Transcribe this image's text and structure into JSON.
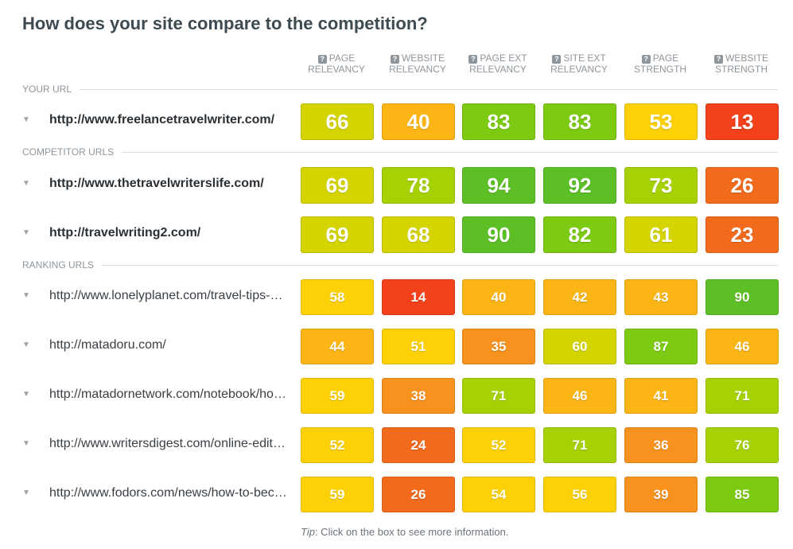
{
  "title": "How does your site compare to the competition?",
  "columns": [
    {
      "line1": "PAGE",
      "line2": "RELEVANCY"
    },
    {
      "line1": "WEBSITE",
      "line2": "RELEVANCY"
    },
    {
      "line1": "PAGE EXT",
      "line2": "RELEVANCY"
    },
    {
      "line1": "SITE EXT",
      "line2": "RELEVANCY"
    },
    {
      "line1": "PAGE",
      "line2": "STRENGTH"
    },
    {
      "line1": "WEBSITE",
      "line2": "STRENGTH"
    }
  ],
  "help_glyph": "?",
  "caret_glyph": "▼",
  "sections": {
    "your_url": "YOUR URL",
    "competitor_urls": "COMPETITOR URLS",
    "ranking_urls": "RANKING URLS"
  },
  "your_url": {
    "url": "http://www.freelancetravelwriter.com/",
    "scores": [
      66,
      40,
      83,
      83,
      53,
      13
    ]
  },
  "competitors": [
    {
      "url": "http://www.thetravelwriterslife.com/",
      "scores": [
        69,
        78,
        94,
        92,
        73,
        26
      ]
    },
    {
      "url": "http://travelwriting2.com/",
      "scores": [
        69,
        68,
        90,
        82,
        61,
        23
      ]
    }
  ],
  "ranking": [
    {
      "url": "http://www.lonelyplanet.com/travel-tips-…",
      "scores": [
        58,
        14,
        40,
        42,
        43,
        90
      ]
    },
    {
      "url": "http://matadoru.com/",
      "scores": [
        44,
        51,
        35,
        60,
        87,
        46
      ]
    },
    {
      "url": "http://matadornetwork.com/notebook/ho…",
      "scores": [
        59,
        38,
        71,
        46,
        41,
        71
      ]
    },
    {
      "url": "http://www.writersdigest.com/online-edit…",
      "scores": [
        52,
        24,
        52,
        71,
        36,
        76
      ]
    },
    {
      "url": "http://www.fodors.com/news/how-to-bec…",
      "scores": [
        59,
        26,
        54,
        56,
        39,
        85
      ]
    }
  ],
  "tip": {
    "label": "Tip",
    "text": ": Click on the box to see more information."
  },
  "colors": {
    "red": "#f2411b",
    "orange_red": "#f26a1b",
    "orange": "#f7921e",
    "amber": "#fbb514",
    "yellow": "#fdd106",
    "yellow_green": "#d4d400",
    "lime": "#a6d204",
    "green": "#7cca12",
    "deep_green": "#5cbf25"
  }
}
